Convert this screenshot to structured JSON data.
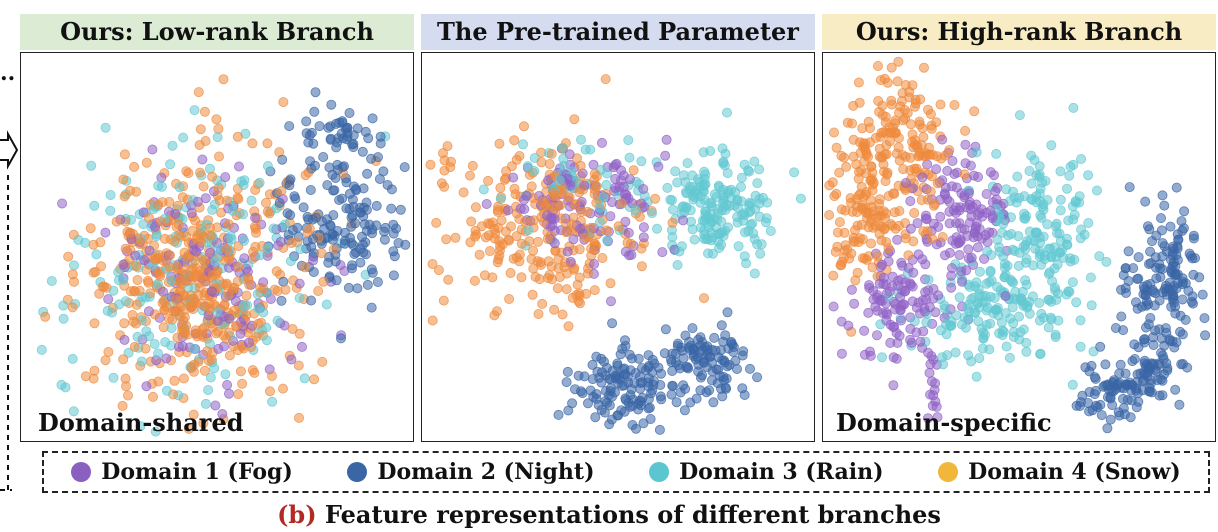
{
  "panels": [
    {
      "title": "Ours: Low-rank Branch",
      "title_bg": "#dcebd3",
      "annotation": "Domain-shared"
    },
    {
      "title": "The Pre-trained Parameter",
      "title_bg": "#d5dcef",
      "annotation": ""
    },
    {
      "title": "Ours: High-rank Branch",
      "title_bg": "#f8ecc4",
      "annotation": "Domain-specific"
    }
  ],
  "legend": [
    {
      "label": "Domain 1 (Fog)",
      "color": "#8b5fbf"
    },
    {
      "label": "Domain 2 (Night)",
      "color": "#3a66a5"
    },
    {
      "label": "Domain 3 (Rain)",
      "color": "#5cc6d0"
    },
    {
      "label": "Domain 4 (Snow)",
      "color": "#f0b73a"
    }
  ],
  "caption": {
    "tag": "(b)",
    "text": " Feature representations of different branches"
  },
  "chart_data": [
    {
      "type": "scatter",
      "title": "Ours: Low-rank Branch",
      "annotation": "Domain-shared",
      "grid": false,
      "axes_ticks": false,
      "series": [
        {
          "name": "Domain 1 (Fog)"
        },
        {
          "name": "Domain 2 (Night)"
        },
        {
          "name": "Domain 3 (Rain)"
        },
        {
          "name": "Domain 4 (Snow)"
        }
      ]
    },
    {
      "type": "scatter",
      "title": "The Pre-trained Parameter",
      "grid": false,
      "axes_ticks": false,
      "series": [
        {
          "name": "Domain 1 (Fog)"
        },
        {
          "name": "Domain 2 (Night)"
        },
        {
          "name": "Domain 3 (Rain)"
        },
        {
          "name": "Domain 4 (Snow)"
        }
      ]
    },
    {
      "type": "scatter",
      "title": "Ours: High-rank Branch",
      "annotation": "Domain-specific",
      "grid": false,
      "axes_ticks": false,
      "series": [
        {
          "name": "Domain 1 (Fog)"
        },
        {
          "name": "Domain 2 (Night)"
        },
        {
          "name": "Domain 3 (Rain)"
        },
        {
          "name": "Domain 4 (Snow)"
        }
      ]
    }
  ]
}
